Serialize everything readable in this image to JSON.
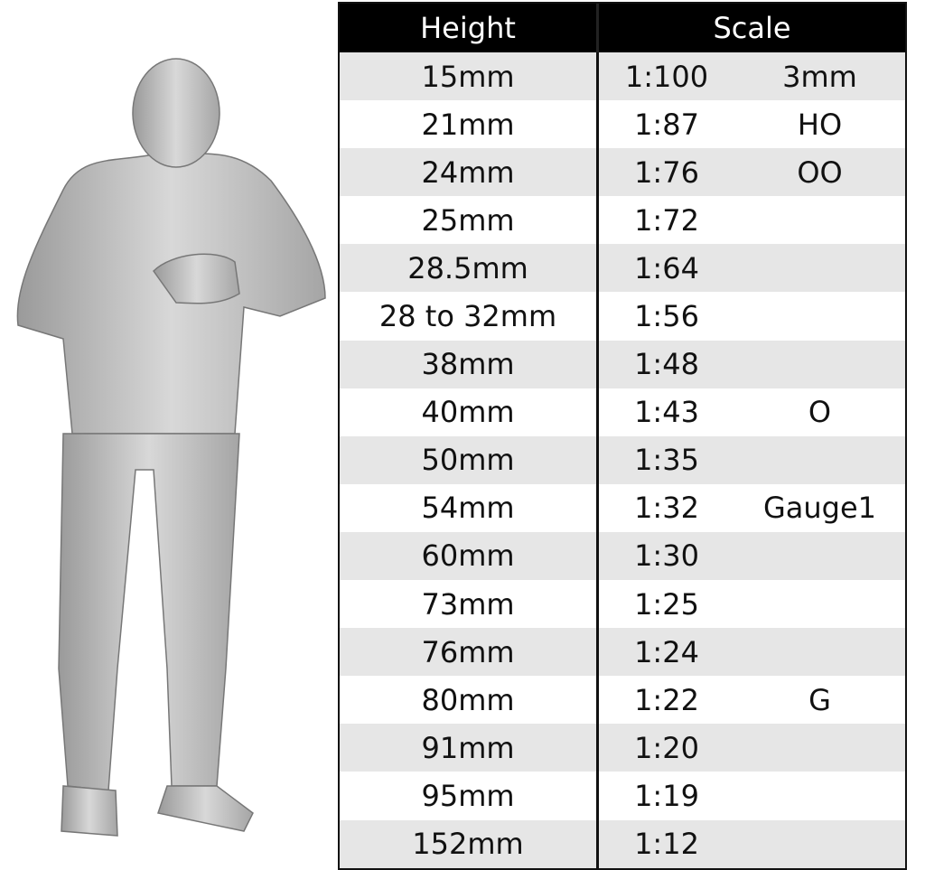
{
  "header": {
    "height": "Height",
    "scale": "Scale"
  },
  "rows": [
    {
      "height": "15mm",
      "scale": "1:100",
      "gauge": "3mm"
    },
    {
      "height": "21mm",
      "scale": "1:87",
      "gauge": "HO"
    },
    {
      "height": "24mm",
      "scale": "1:76",
      "gauge": "OO"
    },
    {
      "height": "25mm",
      "scale": "1:72",
      "gauge": ""
    },
    {
      "height": "28.5mm",
      "scale": "1:64",
      "gauge": ""
    },
    {
      "height": "28 to 32mm",
      "scale": "1:56",
      "gauge": ""
    },
    {
      "height": "38mm",
      "scale": "1:48",
      "gauge": ""
    },
    {
      "height": "40mm",
      "scale": "1:43",
      "gauge": "O"
    },
    {
      "height": "50mm",
      "scale": "1:35",
      "gauge": ""
    },
    {
      "height": "54mm",
      "scale": "1:32",
      "gauge": "Gauge1"
    },
    {
      "height": "60mm",
      "scale": "1:30",
      "gauge": ""
    },
    {
      "height": "73mm",
      "scale": "1:25",
      "gauge": ""
    },
    {
      "height": "76mm",
      "scale": "1:24",
      "gauge": ""
    },
    {
      "height": "80mm",
      "scale": "1:22",
      "gauge": "G"
    },
    {
      "height": "91mm",
      "scale": "1:20",
      "gauge": ""
    },
    {
      "height": "95mm",
      "scale": "1:19",
      "gauge": ""
    },
    {
      "height": "152mm",
      "scale": "1:12",
      "gauge": ""
    }
  ]
}
